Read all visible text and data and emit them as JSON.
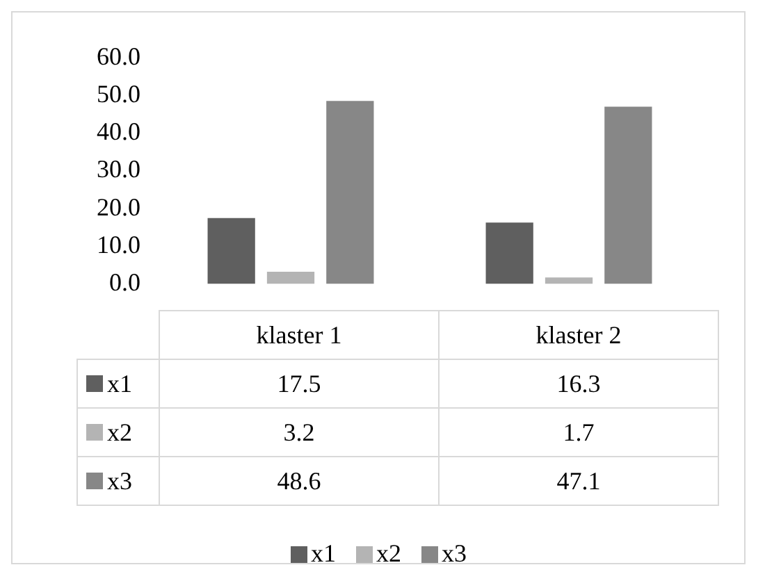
{
  "chart_data": {
    "type": "bar",
    "categories": [
      "klaster 1",
      "klaster 2"
    ],
    "series": [
      {
        "name": "x1",
        "color": "#5f5f5f",
        "values": [
          17.5,
          16.3
        ]
      },
      {
        "name": "x2",
        "color": "#b4b4b4",
        "values": [
          3.2,
          1.7
        ]
      },
      {
        "name": "x3",
        "color": "#878787",
        "values": [
          48.6,
          47.1
        ]
      }
    ],
    "ylim": [
      0,
      60
    ],
    "yticks": [
      {
        "value": 0,
        "label": "0.0"
      },
      {
        "value": 10,
        "label": "10.0"
      },
      {
        "value": 20,
        "label": "20.0"
      },
      {
        "value": 30,
        "label": "30.0"
      },
      {
        "value": 40,
        "label": "40.0"
      },
      {
        "value": 50,
        "label": "50.0"
      },
      {
        "value": 60,
        "label": "60.0"
      }
    ],
    "grid": false,
    "legend": "bottom",
    "data_labels": true
  }
}
